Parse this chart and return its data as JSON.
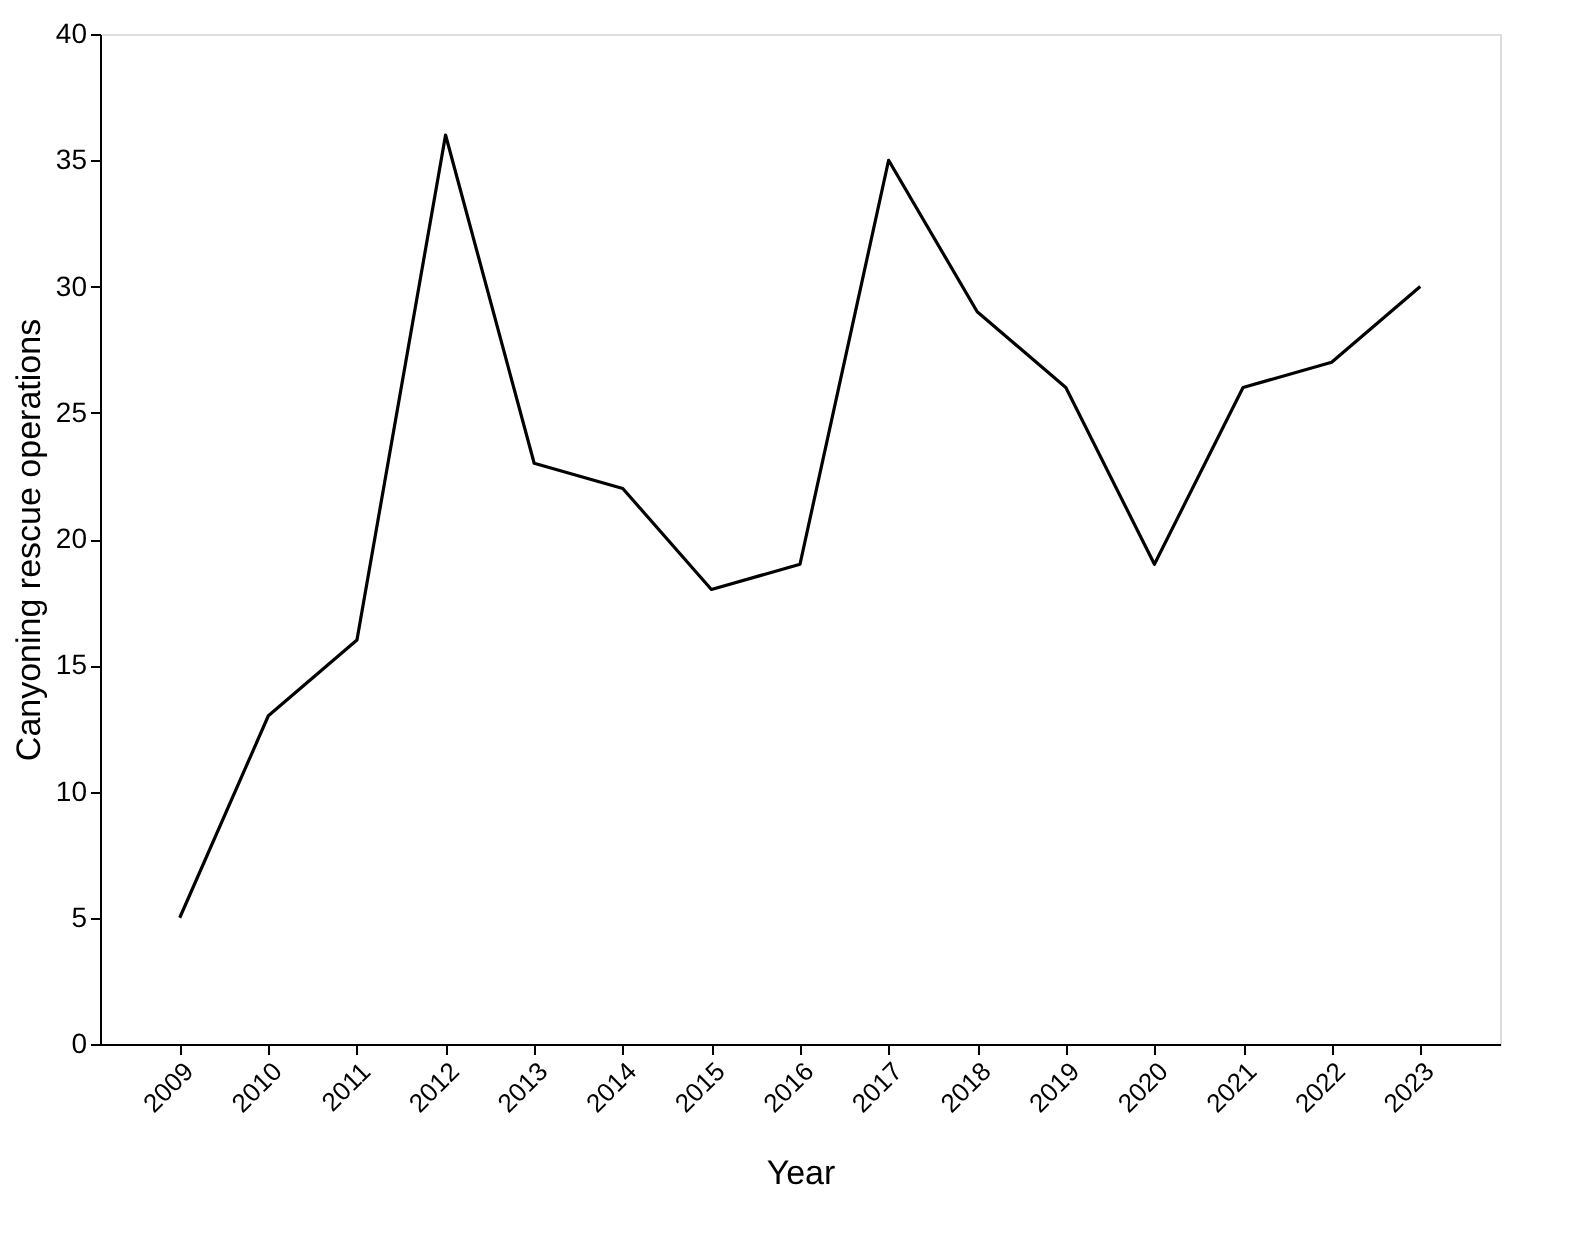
{
  "chart_data": {
    "type": "line",
    "xlabel": "Year",
    "ylabel": "Canyoning rescue operations",
    "categories": [
      "2009",
      "2010",
      "2011",
      "2012",
      "2013",
      "2014",
      "2015",
      "2016",
      "2017",
      "2018",
      "2019",
      "2020",
      "2021",
      "2022",
      "2023"
    ],
    "series": [
      {
        "color": "#000000",
        "values": [
          5,
          13,
          16,
          36,
          23,
          22,
          18,
          19,
          35,
          29,
          26,
          19,
          26,
          27,
          30
        ]
      }
    ],
    "ylim": [
      0,
      40
    ],
    "yticks": [
      0,
      5,
      10,
      15,
      20,
      25,
      30,
      35,
      40
    ],
    "grid": false,
    "legend": false,
    "marker": "none",
    "line_style": "solid"
  }
}
